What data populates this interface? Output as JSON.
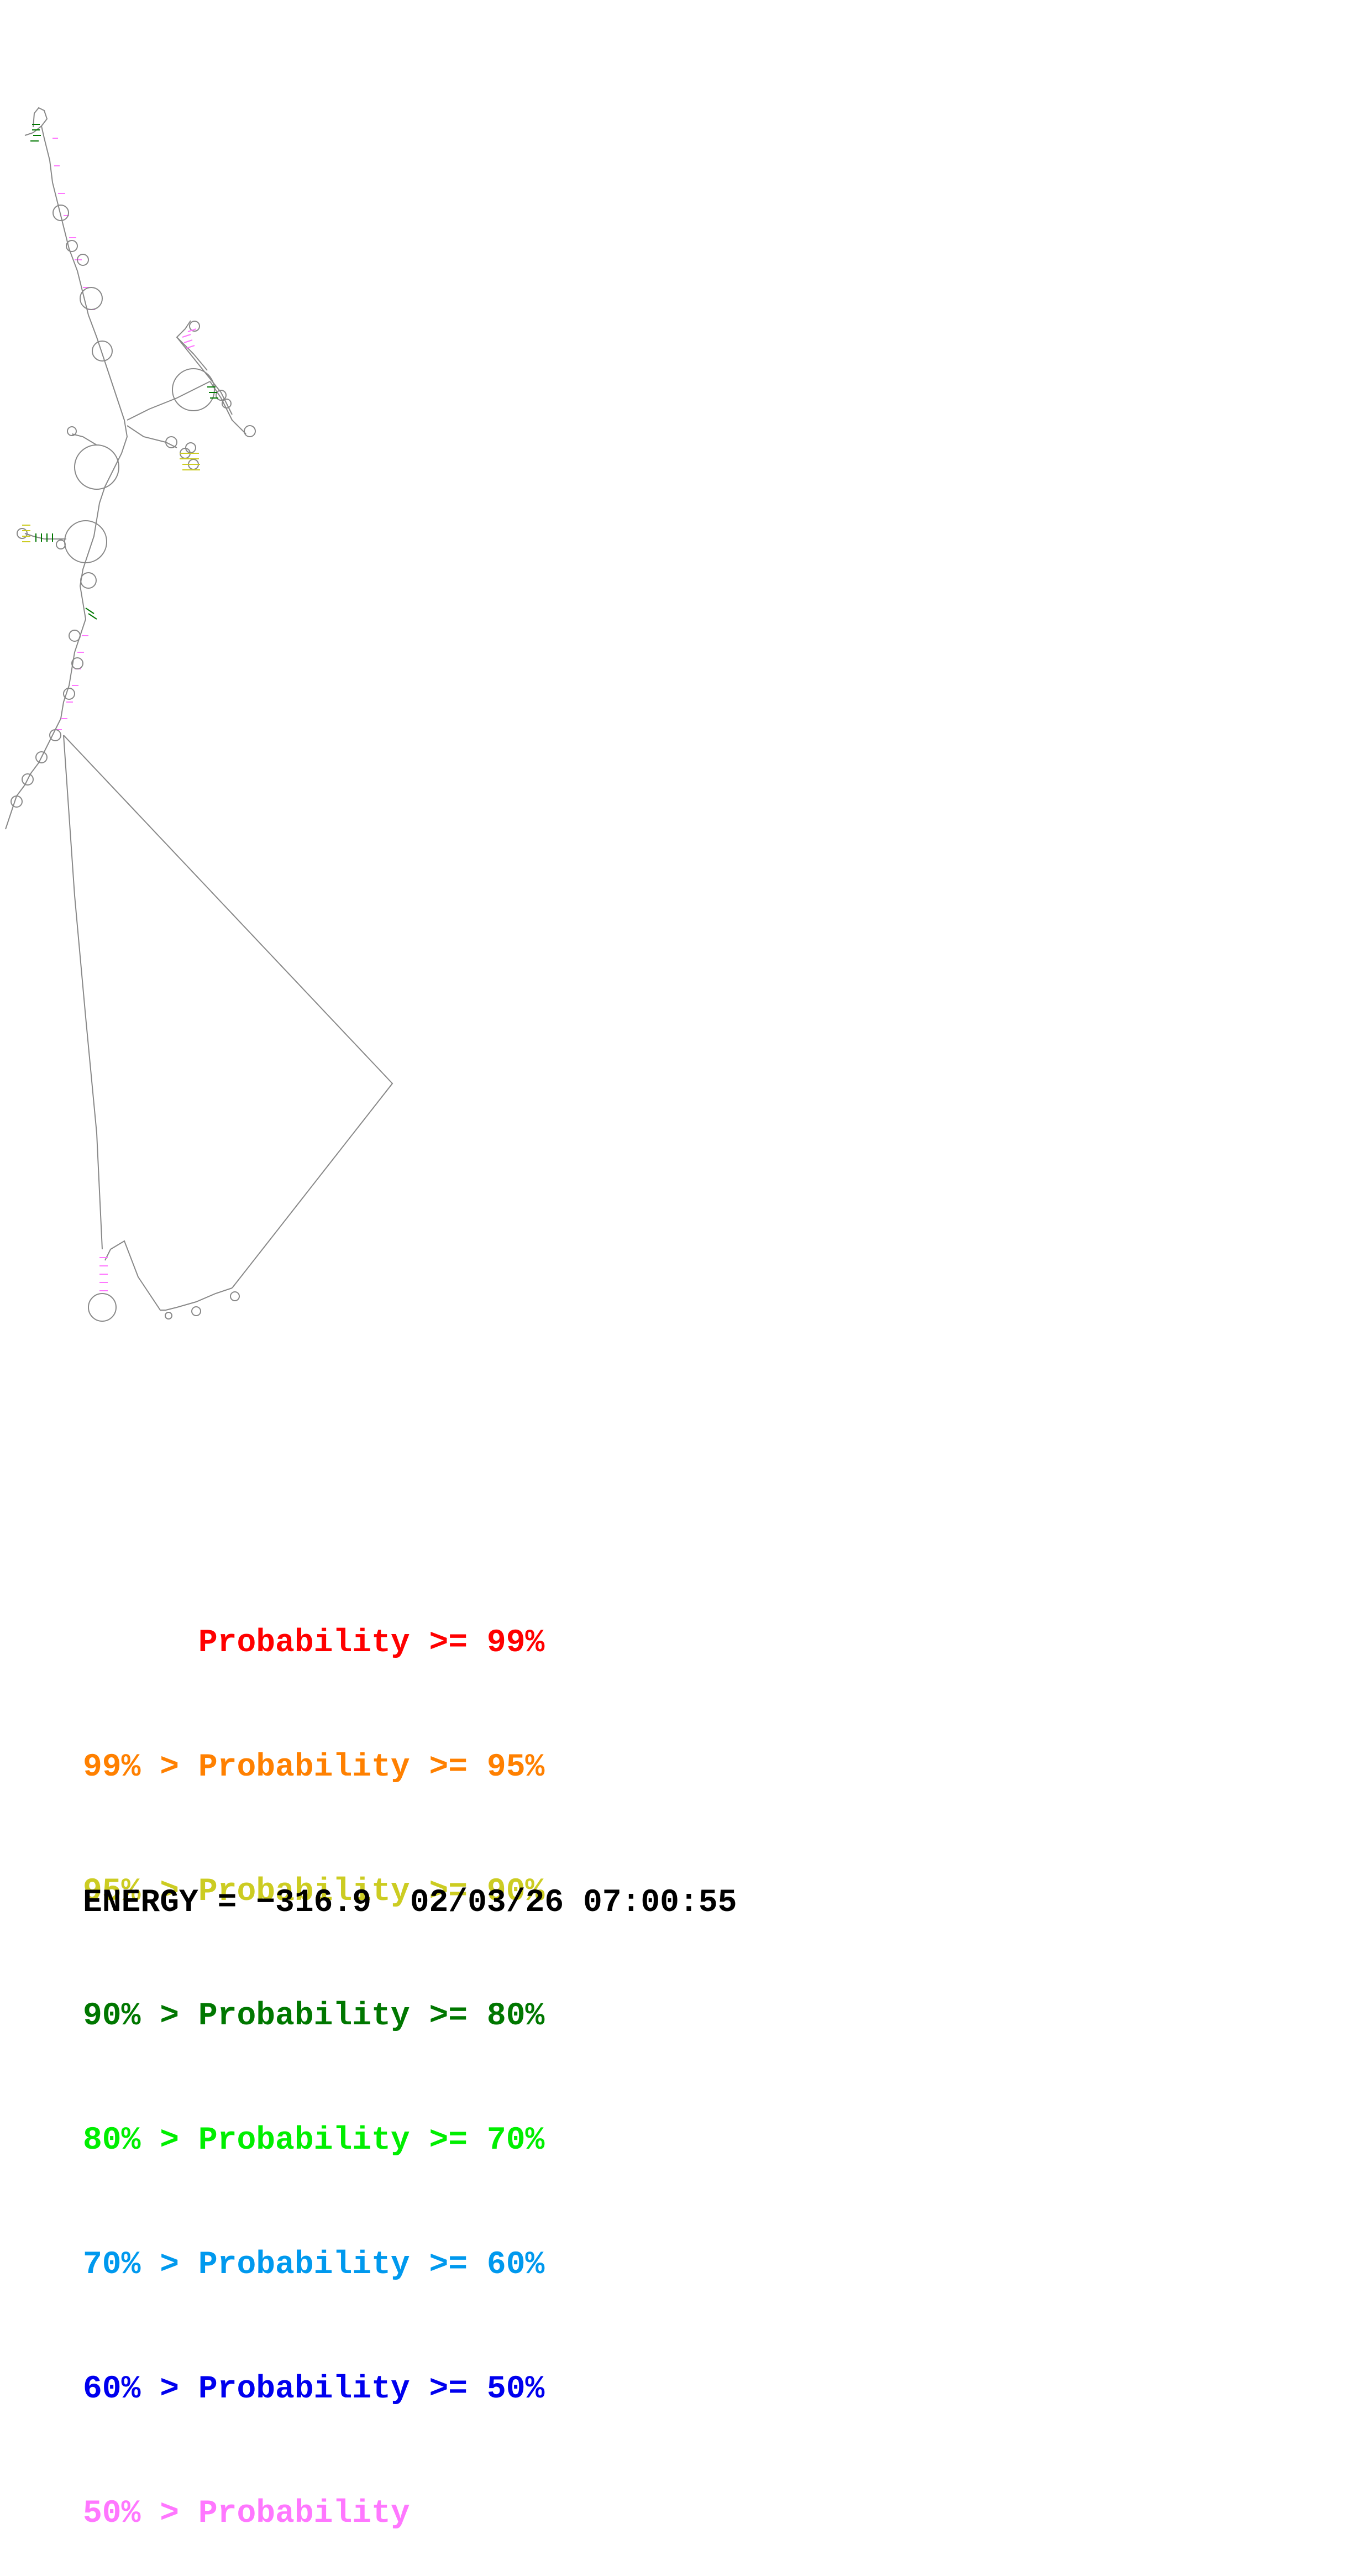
{
  "legend": {
    "rows": [
      {
        "text": "      Probability >= 99%",
        "color": "#ff0000"
      },
      {
        "text": "99% > Probability >= 95%",
        "color": "#ff8000"
      },
      {
        "text": "95% > Probability >= 90%",
        "color": "#cccc22"
      },
      {
        "text": "90% > Probability >= 80%",
        "color": "#007700"
      },
      {
        "text": "80% > Probability >= 70%",
        "color": "#00ee00"
      },
      {
        "text": "70% > Probability >= 60%",
        "color": "#0099ee"
      },
      {
        "text": "60% > Probability >= 50%",
        "color": "#0000ee"
      },
      {
        "text": "50% > Probability",
        "color": "#ff77ff"
      }
    ]
  },
  "footer": {
    "energy": "ENERGY = −316.9  02/03/26 07:00:55"
  },
  "colors": {
    "backbone": "#888888",
    "pairs_main": "#ff77ff",
    "pairs_mid": "#cccc22",
    "pairs_high": "#007700"
  }
}
